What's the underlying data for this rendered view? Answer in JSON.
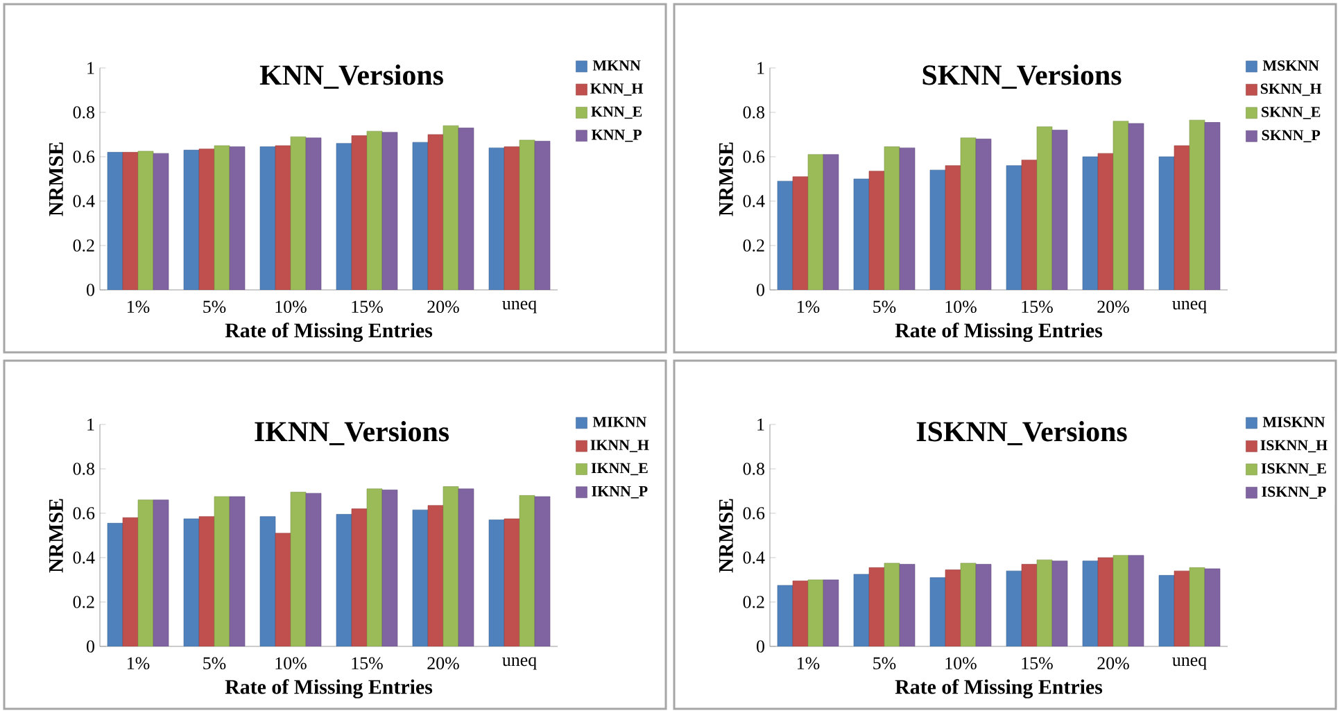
{
  "chart_data": [
    {
      "type": "bar",
      "title": "KNN_Versions",
      "xlabel": "Rate of Missing Entries",
      "ylabel": "NRMSE",
      "categories": [
        "1%",
        "5%",
        "10%",
        "15%",
        "20%",
        "uneq"
      ],
      "ylim": [
        0,
        1
      ],
      "yticks": [
        0,
        0.2,
        0.4,
        0.6,
        0.8,
        1
      ],
      "legend": "top right",
      "series": [
        {
          "name": "MKNN",
          "color": "#4f81bd",
          "values": [
            0.62,
            0.63,
            0.645,
            0.66,
            0.665,
            0.64
          ]
        },
        {
          "name": "KNN_H",
          "color": "#c0504d",
          "values": [
            0.62,
            0.635,
            0.65,
            0.695,
            0.7,
            0.645
          ]
        },
        {
          "name": "KNN_E",
          "color": "#9bbb59",
          "values": [
            0.625,
            0.65,
            0.69,
            0.715,
            0.74,
            0.675
          ]
        },
        {
          "name": "KNN_P",
          "color": "#8064a2",
          "values": [
            0.615,
            0.645,
            0.685,
            0.71,
            0.73,
            0.67
          ]
        }
      ]
    },
    {
      "type": "bar",
      "title": "SKNN_Versions",
      "xlabel": "Rate of Missing Entries",
      "ylabel": "NRMSE",
      "categories": [
        "1%",
        "5%",
        "10%",
        "15%",
        "20%",
        "uneq"
      ],
      "ylim": [
        0,
        1
      ],
      "yticks": [
        0,
        0.2,
        0.4,
        0.6,
        0.8,
        1
      ],
      "legend": "top right",
      "series": [
        {
          "name": "MSKNN",
          "color": "#4f81bd",
          "values": [
            0.49,
            0.5,
            0.54,
            0.56,
            0.6,
            0.6
          ]
        },
        {
          "name": "SKNN_H",
          "color": "#c0504d",
          "values": [
            0.51,
            0.535,
            0.56,
            0.585,
            0.615,
            0.65
          ]
        },
        {
          "name": "SKNN_E",
          "color": "#9bbb59",
          "values": [
            0.61,
            0.645,
            0.685,
            0.735,
            0.76,
            0.765
          ]
        },
        {
          "name": "SKNN_P",
          "color": "#8064a2",
          "values": [
            0.61,
            0.64,
            0.68,
            0.72,
            0.75,
            0.755
          ]
        }
      ]
    },
    {
      "type": "bar",
      "title": "IKNN_Versions",
      "xlabel": "Rate of Missing Entries",
      "ylabel": "NRMSE",
      "categories": [
        "1%",
        "5%",
        "10%",
        "15%",
        "20%",
        "uneq"
      ],
      "ylim": [
        0,
        1
      ],
      "yticks": [
        0,
        0.2,
        0.4,
        0.6,
        0.8,
        1
      ],
      "legend": "top right",
      "series": [
        {
          "name": "MIKNN",
          "color": "#4f81bd",
          "values": [
            0.555,
            0.575,
            0.585,
            0.595,
            0.615,
            0.57
          ]
        },
        {
          "name": "IKNN_H",
          "color": "#c0504d",
          "values": [
            0.58,
            0.585,
            0.51,
            0.62,
            0.635,
            0.575
          ]
        },
        {
          "name": "IKNN_E",
          "color": "#9bbb59",
          "values": [
            0.66,
            0.675,
            0.695,
            0.71,
            0.72,
            0.68
          ]
        },
        {
          "name": "IKNN_P",
          "color": "#8064a2",
          "values": [
            0.66,
            0.675,
            0.69,
            0.705,
            0.71,
            0.675
          ]
        }
      ]
    },
    {
      "type": "bar",
      "title": "ISKNN_Versions",
      "xlabel": "Rate of Missing Entries",
      "ylabel": "NRMSE",
      "categories": [
        "1%",
        "5%",
        "10%",
        "15%",
        "20%",
        "uneq"
      ],
      "ylim": [
        0,
        1
      ],
      "yticks": [
        0,
        0.2,
        0.4,
        0.6,
        0.8,
        1
      ],
      "legend": "top right",
      "series": [
        {
          "name": "MISKNN",
          "color": "#4f81bd",
          "values": [
            0.275,
            0.325,
            0.31,
            0.34,
            0.385,
            0.32
          ]
        },
        {
          "name": "ISKNN_H",
          "color": "#c0504d",
          "values": [
            0.295,
            0.355,
            0.345,
            0.37,
            0.4,
            0.34
          ]
        },
        {
          "name": "ISKNN_E",
          "color": "#9bbb59",
          "values": [
            0.3,
            0.375,
            0.375,
            0.39,
            0.41,
            0.355
          ]
        },
        {
          "name": "ISKNN_P",
          "color": "#8064a2",
          "values": [
            0.3,
            0.37,
            0.37,
            0.385,
            0.41,
            0.35
          ]
        }
      ]
    }
  ]
}
